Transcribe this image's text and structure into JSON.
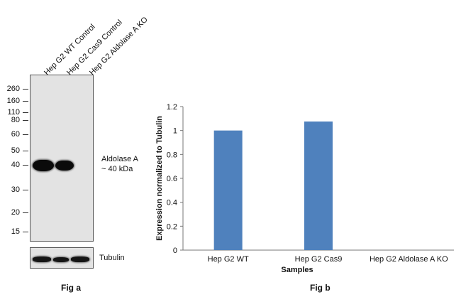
{
  "fig_a": {
    "lane_labels": [
      "Hep G2 WT Control",
      "Hep G2 Cas9 Control",
      "Hep G2 Aldolase A KO"
    ],
    "mw_markers": [
      "260",
      "160",
      "110",
      "80",
      "60",
      "50",
      "40",
      "30",
      "20",
      "15"
    ],
    "band_label_line1": "Aldolase A",
    "band_label_line2": "~ 40 kDa",
    "loading_control_label": "Tubulin",
    "caption": "Fig a"
  },
  "fig_b": {
    "caption": "Fig b"
  },
  "chart_data": {
    "type": "bar",
    "categories": [
      "Hep G2 WT",
      "Hep G2  Cas9",
      "Hep G2 Aldolase A KO"
    ],
    "values": [
      1.0,
      1.075,
      0.0
    ],
    "title": "",
    "xlabel": "Samples",
    "ylabel": "Expression  normalized to Tubulin",
    "ylim": [
      0,
      1.2
    ],
    "yticks": [
      "0",
      "0.2",
      "0.4",
      "0.6",
      "0.8",
      "1",
      "1.2"
    ],
    "bar_color": "#4f81bd",
    "grid": false
  }
}
